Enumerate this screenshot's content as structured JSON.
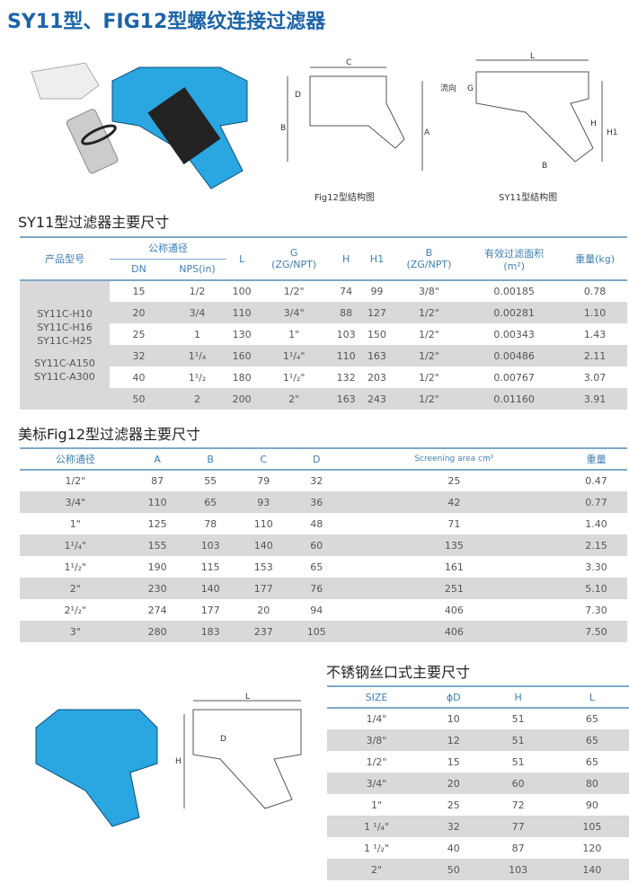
{
  "title": "SY11型、FIG12型螺纹连接过滤器",
  "figures": {
    "fig12_caption": "Fig12型结构图",
    "sy11_caption": "SY11型结构图",
    "fig12_labels": [
      "C",
      "D",
      "B",
      "A"
    ],
    "sy11_labels": [
      "L",
      "流向",
      "G",
      "H",
      "H1",
      "B"
    ],
    "small_labels": [
      "L",
      "D",
      "H"
    ]
  },
  "table1": {
    "heading": "SY11型过滤器主要尺寸",
    "headers": {
      "model": "产品型号",
      "nominal": "公称通径",
      "dn": "DN",
      "nps": "NPS(in)",
      "l": "L",
      "g": "G",
      "g2": "(ZG/NPT)",
      "h": "H",
      "h1": "H1",
      "b": "B",
      "b2": "(ZG/NPT)",
      "area": "有效过滤面积",
      "area2": "(m²)",
      "weight": "重量(kg)"
    },
    "models": [
      "SY11C-H10",
      "SY11C-H16",
      "SY11C-H25",
      "SY11C-A150",
      "SY11C-A300"
    ],
    "rows": [
      [
        "15",
        "1/2",
        "100",
        "1/2\"",
        "74",
        "99",
        "3/8\"",
        "0.00185",
        "0.78"
      ],
      [
        "20",
        "3/4",
        "110",
        "3/4\"",
        "88",
        "127",
        "1/2\"",
        "0.00281",
        "1.10"
      ],
      [
        "25",
        "1",
        "130",
        "1\"",
        "103",
        "150",
        "1/2\"",
        "0.00343",
        "1.43"
      ],
      [
        "32",
        "1¹/₄",
        "160",
        "1¹/₄\"",
        "110",
        "163",
        "1/2\"",
        "0.00486",
        "2.11"
      ],
      [
        "40",
        "1¹/₂",
        "180",
        "1¹/₂\"",
        "132",
        "203",
        "1/2\"",
        "0.00767",
        "3.07"
      ],
      [
        "50",
        "2",
        "200",
        "2\"",
        "163",
        "243",
        "1/2\"",
        "0.01160",
        "3.91"
      ]
    ]
  },
  "table2": {
    "heading": "美标Fig12型过滤器主要尺寸",
    "headers": [
      "公称通径",
      "A",
      "B",
      "C",
      "D",
      "Screening area cm²",
      "重量"
    ],
    "rows": [
      [
        "1/2\"",
        "87",
        "55",
        "79",
        "32",
        "25",
        "0.47"
      ],
      [
        "3/4\"",
        "110",
        "65",
        "93",
        "36",
        "42",
        "0.77"
      ],
      [
        "1\"",
        "125",
        "78",
        "110",
        "48",
        "71",
        "1.40"
      ],
      [
        "1¹/₄\"",
        "155",
        "103",
        "140",
        "60",
        "135",
        "2.15"
      ],
      [
        "1¹/₂\"",
        "190",
        "115",
        "153",
        "65",
        "161",
        "3.30"
      ],
      [
        "2\"",
        "230",
        "140",
        "177",
        "76",
        "251",
        "5.10"
      ],
      [
        "2¹/₂\"",
        "274",
        "177",
        "20",
        "94",
        "406",
        "7.30"
      ],
      [
        "3\"",
        "280",
        "183",
        "237",
        "105",
        "406",
        "7.50"
      ]
    ]
  },
  "table3": {
    "heading": "不锈钢丝口式主要尺寸",
    "headers": [
      "SIZE",
      "ϕD",
      "H",
      "L"
    ],
    "rows": [
      [
        "1/4\"",
        "10",
        "51",
        "65"
      ],
      [
        "3/8\"",
        "12",
        "51",
        "65"
      ],
      [
        "1/2\"",
        "15",
        "51",
        "65"
      ],
      [
        "3/4\"",
        "20",
        "60",
        "80"
      ],
      [
        "1\"",
        "25",
        "72",
        "90"
      ],
      [
        "1 ¹/₄\"",
        "32",
        "77",
        "105"
      ],
      [
        "1 ¹/₂\"",
        "40",
        "87",
        "120"
      ],
      [
        "2\"",
        "50",
        "103",
        "140"
      ]
    ]
  },
  "colors": {
    "title": "#1d64a8",
    "valve_blue": "#2aa6e0",
    "header_text": "#3f7fb5",
    "row_grey": "#d9d9d9"
  }
}
